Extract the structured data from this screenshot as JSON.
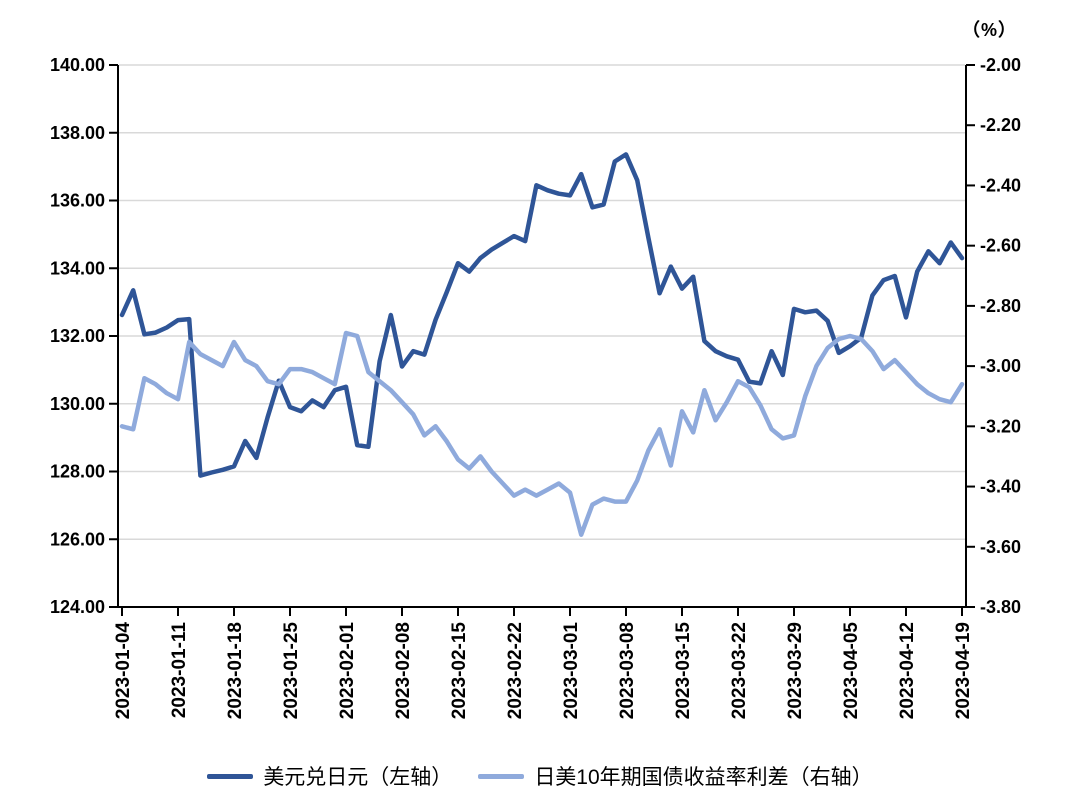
{
  "chart_data": {
    "type": "line",
    "title": "",
    "unit_label": "（%）",
    "x_tick_labels": [
      "2023-01-04",
      "2023-01-11",
      "2023-01-18",
      "2023-01-25",
      "2023-02-01",
      "2023-02-08",
      "2023-02-15",
      "2023-02-22",
      "2023-03-01",
      "2023-03-08",
      "2023-03-15",
      "2023-03-22",
      "2023-03-29",
      "2023-04-05",
      "2023-04-12",
      "2023-04-19"
    ],
    "points_per_tick": 5,
    "left_axis": {
      "min": 124,
      "max": 140,
      "step": 2,
      "tick_labels": [
        "140.00",
        "138.00",
        "136.00",
        "134.00",
        "132.00",
        "130.00",
        "128.00",
        "126.00",
        "124.00"
      ]
    },
    "right_axis": {
      "min": -3.8,
      "max": -2.0,
      "step": 0.2,
      "tick_labels": [
        "-2.00",
        "-2.20",
        "-2.40",
        "-2.60",
        "-2.80",
        "-3.00",
        "-3.20",
        "-3.40",
        "-3.60",
        "-3.80"
      ]
    },
    "grid": {
      "horizontal": true,
      "color": "#D9D9D9"
    },
    "axis_color": "#000000",
    "legend_position": "bottom",
    "series": [
      {
        "name": "美元兑日元（左轴）",
        "axis": "left",
        "color": "#2F5597",
        "values": [
          132.62,
          133.35,
          132.05,
          132.1,
          132.25,
          132.47,
          132.5,
          127.88,
          127.97,
          128.05,
          128.15,
          128.9,
          128.4,
          129.6,
          130.68,
          129.9,
          129.78,
          130.1,
          129.9,
          130.4,
          130.5,
          128.78,
          128.73,
          131.25,
          132.62,
          131.1,
          131.55,
          131.45,
          132.48,
          133.3,
          134.15,
          133.9,
          134.3,
          134.55,
          134.75,
          134.95,
          134.8,
          136.45,
          136.3,
          136.2,
          136.15,
          136.78,
          135.8,
          135.88,
          137.15,
          137.36,
          136.6,
          134.9,
          133.26,
          134.05,
          133.4,
          133.75,
          131.85,
          131.55,
          131.4,
          131.3,
          130.65,
          130.6,
          131.55,
          130.85,
          132.8,
          132.7,
          132.75,
          132.45,
          131.5,
          131.7,
          131.95,
          133.2,
          133.65,
          133.77,
          132.55,
          133.9,
          134.5,
          134.15,
          134.76,
          134.3
        ]
      },
      {
        "name": "日美10年期国债收益率利差（右轴）",
        "axis": "right",
        "color": "#8FAADC",
        "values": [
          -3.2,
          -3.21,
          -3.04,
          -3.06,
          -3.09,
          -3.11,
          -2.92,
          -2.96,
          -2.98,
          -3.0,
          -2.92,
          -2.98,
          -3.0,
          -3.05,
          -3.06,
          -3.01,
          -3.01,
          -3.02,
          -3.04,
          -3.06,
          -2.89,
          -2.9,
          -3.02,
          -3.05,
          -3.08,
          -3.12,
          -3.16,
          -3.23,
          -3.2,
          -3.25,
          -3.31,
          -3.34,
          -3.3,
          -3.35,
          -3.39,
          -3.43,
          -3.41,
          -3.43,
          -3.41,
          -3.39,
          -3.42,
          -3.56,
          -3.46,
          -3.44,
          -3.45,
          -3.45,
          -3.38,
          -3.28,
          -3.21,
          -3.33,
          -3.15,
          -3.22,
          -3.08,
          -3.18,
          -3.12,
          -3.05,
          -3.07,
          -3.13,
          -3.21,
          -3.24,
          -3.23,
          -3.1,
          -3.0,
          -2.94,
          -2.91,
          -2.9,
          -2.91,
          -2.95,
          -3.01,
          -2.98,
          -3.02,
          -3.06,
          -3.09,
          -3.11,
          -3.12,
          -3.06
        ]
      }
    ]
  }
}
